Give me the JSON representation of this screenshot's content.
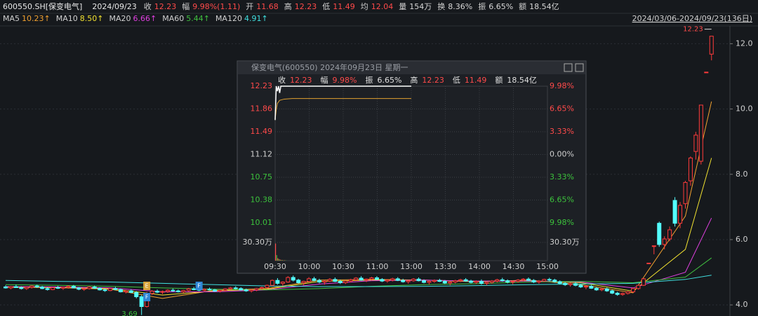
{
  "header": {
    "code": "600550.SH[保变电气]",
    "date": "2024/09/23",
    "fields": [
      {
        "label": "收",
        "value": "12.23",
        "color": "#ff4a4a"
      },
      {
        "label": "幅",
        "value": "9.98%(1.11)",
        "color": "#ff4a4a"
      },
      {
        "label": "开",
        "value": "11.68",
        "color": "#ff4a4a"
      },
      {
        "label": "高",
        "value": "12.23",
        "color": "#ff4a4a"
      },
      {
        "label": "低",
        "value": "11.49",
        "color": "#ff4a4a"
      },
      {
        "label": "均",
        "value": "12.04",
        "color": "#ff4a4a"
      },
      {
        "label": "量",
        "value": "154万",
        "color": "#d8d8d8"
      },
      {
        "label": "换",
        "value": "8.36%",
        "color": "#d8d8d8"
      },
      {
        "label": "振",
        "value": "6.65%",
        "color": "#d8d8d8"
      },
      {
        "label": "额",
        "value": "18.54亿",
        "color": "#d8d8d8"
      }
    ]
  },
  "range": "2024/03/06-2024/09/23(136日)",
  "kline": {
    "ylim": [
      3.66,
      12.48
    ],
    "yticks": [
      {
        "value": 4,
        "label": "4.0"
      },
      {
        "value": 6,
        "label": "6.0"
      },
      {
        "value": 8,
        "label": "8.0"
      },
      {
        "value": 10,
        "label": "10.0"
      },
      {
        "value": 12,
        "label": "12.0"
      }
    ],
    "up_color": "#ff3b3b",
    "down_color": "#54ffff",
    "candles": [
      [
        4.55,
        4.6,
        4.5,
        4.52
      ],
      [
        4.52,
        4.58,
        4.48,
        4.56
      ],
      [
        4.56,
        4.62,
        4.52,
        4.53
      ],
      [
        4.53,
        4.57,
        4.47,
        4.5
      ],
      [
        4.5,
        4.56,
        4.46,
        4.54
      ],
      [
        4.54,
        4.6,
        4.5,
        4.58
      ],
      [
        4.58,
        4.62,
        4.52,
        4.55
      ],
      [
        4.55,
        4.58,
        4.48,
        4.5
      ],
      [
        4.5,
        4.54,
        4.44,
        4.47
      ],
      [
        4.47,
        4.55,
        4.45,
        4.53
      ],
      [
        4.53,
        4.58,
        4.49,
        4.51
      ],
      [
        4.51,
        4.56,
        4.46,
        4.54
      ],
      [
        4.54,
        4.6,
        4.5,
        4.57
      ],
      [
        4.57,
        4.61,
        4.51,
        4.52
      ],
      [
        4.52,
        4.55,
        4.45,
        4.48
      ],
      [
        4.48,
        4.53,
        4.43,
        4.5
      ],
      [
        4.5,
        4.57,
        4.47,
        4.55
      ],
      [
        4.55,
        4.59,
        4.49,
        4.51
      ],
      [
        4.51,
        4.54,
        4.44,
        4.46
      ],
      [
        4.46,
        4.5,
        4.4,
        4.44
      ],
      [
        4.44,
        4.52,
        4.42,
        4.5
      ],
      [
        4.5,
        4.55,
        4.45,
        4.47
      ],
      [
        4.47,
        4.5,
        4.38,
        4.4
      ],
      [
        4.4,
        4.46,
        4.35,
        4.43
      ],
      [
        4.43,
        4.48,
        4.36,
        4.38
      ],
      [
        4.38,
        4.42,
        4.2,
        4.25
      ],
      [
        4.25,
        4.3,
        3.69,
        3.95
      ],
      [
        3.95,
        4.4,
        3.92,
        4.35
      ],
      [
        4.35,
        4.45,
        4.3,
        4.42
      ],
      [
        4.42,
        4.47,
        4.36,
        4.39
      ],
      [
        4.39,
        4.44,
        4.33,
        4.41
      ],
      [
        4.41,
        4.48,
        4.37,
        4.45
      ],
      [
        4.45,
        4.5,
        4.4,
        4.43
      ],
      [
        4.43,
        4.47,
        4.38,
        4.4
      ],
      [
        4.4,
        4.46,
        4.36,
        4.44
      ],
      [
        4.44,
        4.52,
        4.41,
        4.49
      ],
      [
        4.49,
        4.55,
        4.45,
        4.47
      ],
      [
        4.47,
        4.51,
        4.42,
        4.45
      ],
      [
        4.45,
        4.5,
        4.4,
        4.48
      ],
      [
        4.48,
        4.53,
        4.44,
        4.46
      ],
      [
        4.46,
        4.49,
        4.4,
        4.42
      ],
      [
        4.42,
        4.47,
        4.38,
        4.45
      ],
      [
        4.45,
        4.51,
        4.41,
        4.49
      ],
      [
        4.49,
        4.55,
        4.45,
        4.52
      ],
      [
        4.52,
        4.57,
        4.47,
        4.5
      ],
      [
        4.5,
        4.54,
        4.44,
        4.46
      ],
      [
        4.46,
        4.5,
        4.4,
        4.43
      ],
      [
        4.43,
        4.48,
        4.38,
        4.46
      ],
      [
        4.46,
        4.52,
        4.42,
        4.5
      ],
      [
        4.5,
        4.56,
        4.46,
        4.53
      ],
      [
        4.53,
        4.62,
        4.5,
        4.6
      ],
      [
        4.6,
        4.78,
        4.58,
        4.75
      ],
      [
        4.75,
        4.82,
        4.62,
        4.66
      ],
      [
        4.66,
        4.72,
        4.58,
        4.7
      ],
      [
        4.7,
        4.88,
        4.68,
        4.84
      ],
      [
        4.84,
        4.9,
        4.72,
        4.76
      ],
      [
        4.76,
        4.8,
        4.65,
        4.68
      ],
      [
        4.68,
        4.74,
        4.6,
        4.72
      ],
      [
        4.72,
        4.85,
        4.7,
        4.8
      ],
      [
        4.8,
        4.86,
        4.72,
        4.75
      ],
      [
        4.75,
        4.8,
        4.66,
        4.7
      ],
      [
        4.7,
        4.76,
        4.62,
        4.73
      ],
      [
        4.73,
        4.82,
        4.7,
        4.78
      ],
      [
        4.78,
        4.84,
        4.7,
        4.72
      ],
      [
        4.72,
        4.77,
        4.64,
        4.68
      ],
      [
        4.68,
        4.75,
        4.64,
        4.73
      ],
      [
        4.73,
        4.8,
        4.69,
        4.77
      ],
      [
        4.77,
        4.85,
        4.73,
        4.82
      ],
      [
        4.82,
        4.88,
        4.74,
        4.76
      ],
      [
        4.76,
        4.81,
        4.7,
        4.79
      ],
      [
        4.79,
        4.86,
        4.75,
        4.83
      ],
      [
        4.83,
        4.88,
        4.76,
        4.78
      ],
      [
        4.78,
        4.82,
        4.7,
        4.73
      ],
      [
        4.73,
        4.79,
        4.68,
        4.76
      ],
      [
        4.76,
        4.83,
        4.72,
        4.8
      ],
      [
        4.8,
        4.85,
        4.73,
        4.75
      ],
      [
        4.75,
        4.8,
        4.68,
        4.71
      ],
      [
        4.71,
        4.76,
        4.65,
        4.74
      ],
      [
        4.74,
        4.82,
        4.71,
        4.79
      ],
      [
        4.79,
        4.84,
        4.72,
        4.74
      ],
      [
        4.74,
        4.78,
        4.66,
        4.69
      ],
      [
        4.69,
        4.74,
        4.62,
        4.72
      ],
      [
        4.72,
        4.78,
        4.68,
        4.75
      ],
      [
        4.75,
        4.8,
        4.7,
        4.72
      ],
      [
        4.72,
        4.76,
        4.64,
        4.67
      ],
      [
        4.67,
        4.72,
        4.6,
        4.7
      ],
      [
        4.7,
        4.77,
        4.66,
        4.74
      ],
      [
        4.74,
        4.8,
        4.7,
        4.77
      ],
      [
        4.77,
        4.82,
        4.71,
        4.73
      ],
      [
        4.73,
        4.77,
        4.66,
        4.69
      ],
      [
        4.69,
        4.75,
        4.64,
        4.72
      ],
      [
        4.72,
        4.78,
        4.62,
        4.66
      ],
      [
        4.66,
        4.72,
        4.6,
        4.69
      ],
      [
        4.69,
        4.76,
        4.65,
        4.73
      ],
      [
        4.73,
        4.8,
        4.69,
        4.77
      ],
      [
        4.77,
        4.83,
        4.71,
        4.74
      ],
      [
        4.74,
        4.78,
        4.66,
        4.7
      ],
      [
        4.7,
        4.75,
        4.63,
        4.72
      ],
      [
        4.72,
        4.79,
        4.68,
        4.76
      ],
      [
        4.76,
        4.82,
        4.72,
        4.79
      ],
      [
        4.79,
        4.84,
        4.73,
        4.75
      ],
      [
        4.75,
        4.79,
        4.67,
        4.7
      ],
      [
        4.7,
        4.76,
        4.65,
        4.73
      ],
      [
        4.73,
        4.8,
        4.7,
        4.78
      ],
      [
        4.78,
        4.83,
        4.72,
        4.76
      ],
      [
        4.76,
        4.8,
        4.68,
        4.71
      ],
      [
        4.71,
        4.75,
        4.63,
        4.66
      ],
      [
        4.66,
        4.7,
        4.58,
        4.62
      ],
      [
        4.62,
        4.68,
        4.56,
        4.65
      ],
      [
        4.65,
        4.7,
        4.57,
        4.6
      ],
      [
        4.6,
        4.64,
        4.52,
        4.55
      ],
      [
        4.55,
        4.6,
        4.48,
        4.57
      ],
      [
        4.57,
        4.61,
        4.49,
        4.51
      ],
      [
        4.51,
        4.55,
        4.43,
        4.46
      ],
      [
        4.46,
        4.52,
        4.42,
        4.49
      ],
      [
        4.49,
        4.53,
        4.4,
        4.43
      ],
      [
        4.43,
        4.47,
        4.33,
        4.36
      ],
      [
        4.36,
        4.4,
        4.28,
        4.32
      ],
      [
        4.32,
        4.38,
        4.28,
        4.35
      ],
      [
        4.35,
        4.42,
        4.32,
        4.4
      ],
      [
        4.4,
        4.52,
        4.38,
        4.5
      ],
      [
        4.5,
        4.62,
        4.47,
        4.6
      ],
      [
        4.6,
        4.82,
        4.58,
        4.8
      ],
      [
        5.28,
        5.28,
        5.28,
        5.28
      ],
      [
        5.81,
        5.81,
        5.55,
        5.81
      ],
      [
        6.5,
        6.55,
        5.78,
        5.85
      ],
      [
        5.85,
        6.1,
        5.7,
        6.02
      ],
      [
        6.02,
        6.4,
        5.95,
        6.3
      ],
      [
        7.2,
        7.3,
        6.4,
        6.5
      ],
      [
        6.5,
        7.15,
        6.35,
        7.05
      ],
      [
        7.1,
        7.8,
        6.95,
        7.75
      ],
      [
        7.8,
        8.55,
        7.65,
        8.5
      ],
      [
        8.7,
        9.3,
        8.45,
        9.2
      ],
      [
        8.4,
        10.12,
        8.3,
        10.12
      ],
      [
        11.13,
        11.13,
        11.13,
        11.13
      ],
      [
        11.68,
        12.23,
        11.49,
        12.23
      ]
    ],
    "last_label": "12.23",
    "low_label": "3.69",
    "low_index": 26,
    "markers": [
      {
        "label": "E",
        "index": 27,
        "color": "#d9a43a"
      },
      {
        "label": "F",
        "index": 27,
        "color": "#2f86d6"
      },
      {
        "label": "F",
        "index": 37,
        "color": "#2f86d6"
      }
    ],
    "ma_index": [
      0,
      10,
      20,
      30,
      40,
      50,
      60,
      70,
      80,
      90,
      100,
      110,
      120,
      130,
      135
    ],
    "ma": [
      {
        "name": "MA5",
        "label": "10.23↑",
        "color": "#f0a030",
        "values": [
          4.54,
          4.53,
          4.48,
          4.2,
          4.45,
          4.5,
          4.76,
          4.78,
          4.76,
          4.71,
          4.76,
          4.62,
          4.37,
          6.72,
          10.23
        ]
      },
      {
        "name": "MA10",
        "label": "8.50↑",
        "color": "#f0e030",
        "values": [
          4.55,
          4.54,
          4.5,
          4.3,
          4.43,
          4.48,
          4.72,
          4.76,
          4.76,
          4.72,
          4.74,
          4.68,
          4.42,
          5.7,
          8.5
        ]
      },
      {
        "name": "MA20",
        "label": "6.66↑",
        "color": "#e040e0",
        "values": [
          4.56,
          4.55,
          4.52,
          4.4,
          4.4,
          4.46,
          4.64,
          4.74,
          4.76,
          4.73,
          4.73,
          4.7,
          4.52,
          5.0,
          6.66
        ]
      },
      {
        "name": "MA60",
        "label": "5.44↑",
        "color": "#40c040",
        "values": [
          4.62,
          4.6,
          4.57,
          4.52,
          4.48,
          4.46,
          4.5,
          4.57,
          4.62,
          4.65,
          4.7,
          4.72,
          4.68,
          4.85,
          5.44
        ]
      },
      {
        "name": "MA120",
        "label": "4.91↑",
        "color": "#40e0e0",
        "values": [
          4.75,
          4.72,
          4.7,
          4.66,
          4.62,
          4.58,
          4.56,
          4.56,
          4.57,
          4.59,
          4.62,
          4.64,
          4.66,
          4.78,
          4.91
        ]
      }
    ]
  },
  "popup": {
    "title": "保变电气(600550) 2024年09月23日 星期一",
    "fields": [
      {
        "label": "收",
        "value": "12.23"
      },
      {
        "label": "幅",
        "value": "9.98%"
      },
      {
        "label": "振",
        "value": "6.65%"
      },
      {
        "label": "高",
        "value": "12.23"
      },
      {
        "label": "低",
        "value": "11.49"
      },
      {
        "label": "额",
        "value": "18.54亿"
      }
    ],
    "ylim": [
      10.01,
      12.23
    ],
    "xlim": [
      0,
      240
    ],
    "price_ticks": [
      12.23,
      11.86,
      11.49,
      11.12,
      10.75,
      10.38,
      10.01
    ],
    "pct_ticks": [
      "9.98%",
      "6.65%",
      "3.33%",
      "0.00%",
      "3.33%",
      "6.65%",
      "9.98%"
    ],
    "vol_tick": {
      "value": 30.3,
      "label": "30.30万"
    },
    "time_ticks": [
      {
        "value": 0,
        "label": "09:30"
      },
      {
        "value": 30,
        "label": "10:00"
      },
      {
        "value": 60,
        "label": "10:30"
      },
      {
        "value": 90,
        "label": "11:00"
      },
      {
        "value": 120,
        "label": "13:00"
      },
      {
        "value": 150,
        "label": "13:30"
      },
      {
        "value": 180,
        "label": "14:00"
      },
      {
        "value": 210,
        "label": "14:30"
      },
      {
        "value": 240,
        "label": "15:00"
      }
    ],
    "price": {
      "minute": [
        0,
        1,
        2,
        3,
        4,
        5,
        6,
        8,
        10,
        20,
        40,
        60,
        90,
        120
      ],
      "values": [
        11.68,
        12.23,
        12.15,
        12.23,
        12.12,
        12.23,
        12.23,
        12.23,
        12.23,
        12.23,
        12.23,
        12.23,
        12.23,
        12.23
      ],
      "color": "#ffffff"
    },
    "avg": {
      "minute": [
        0,
        1,
        2,
        4,
        8,
        15,
        30,
        60,
        120
      ],
      "values": [
        11.68,
        11.85,
        11.95,
        12.0,
        12.02,
        12.03,
        12.03,
        12.03,
        12.03
      ],
      "color": "#e0a030"
    },
    "volume": {
      "minute": [
        0,
        1,
        2,
        3,
        4,
        5,
        6,
        7,
        8,
        9
      ],
      "values": [
        28.5,
        9.2,
        4.1,
        2.6,
        1.8,
        1.2,
        0.9,
        0.7,
        0.6,
        0.5
      ]
    }
  }
}
